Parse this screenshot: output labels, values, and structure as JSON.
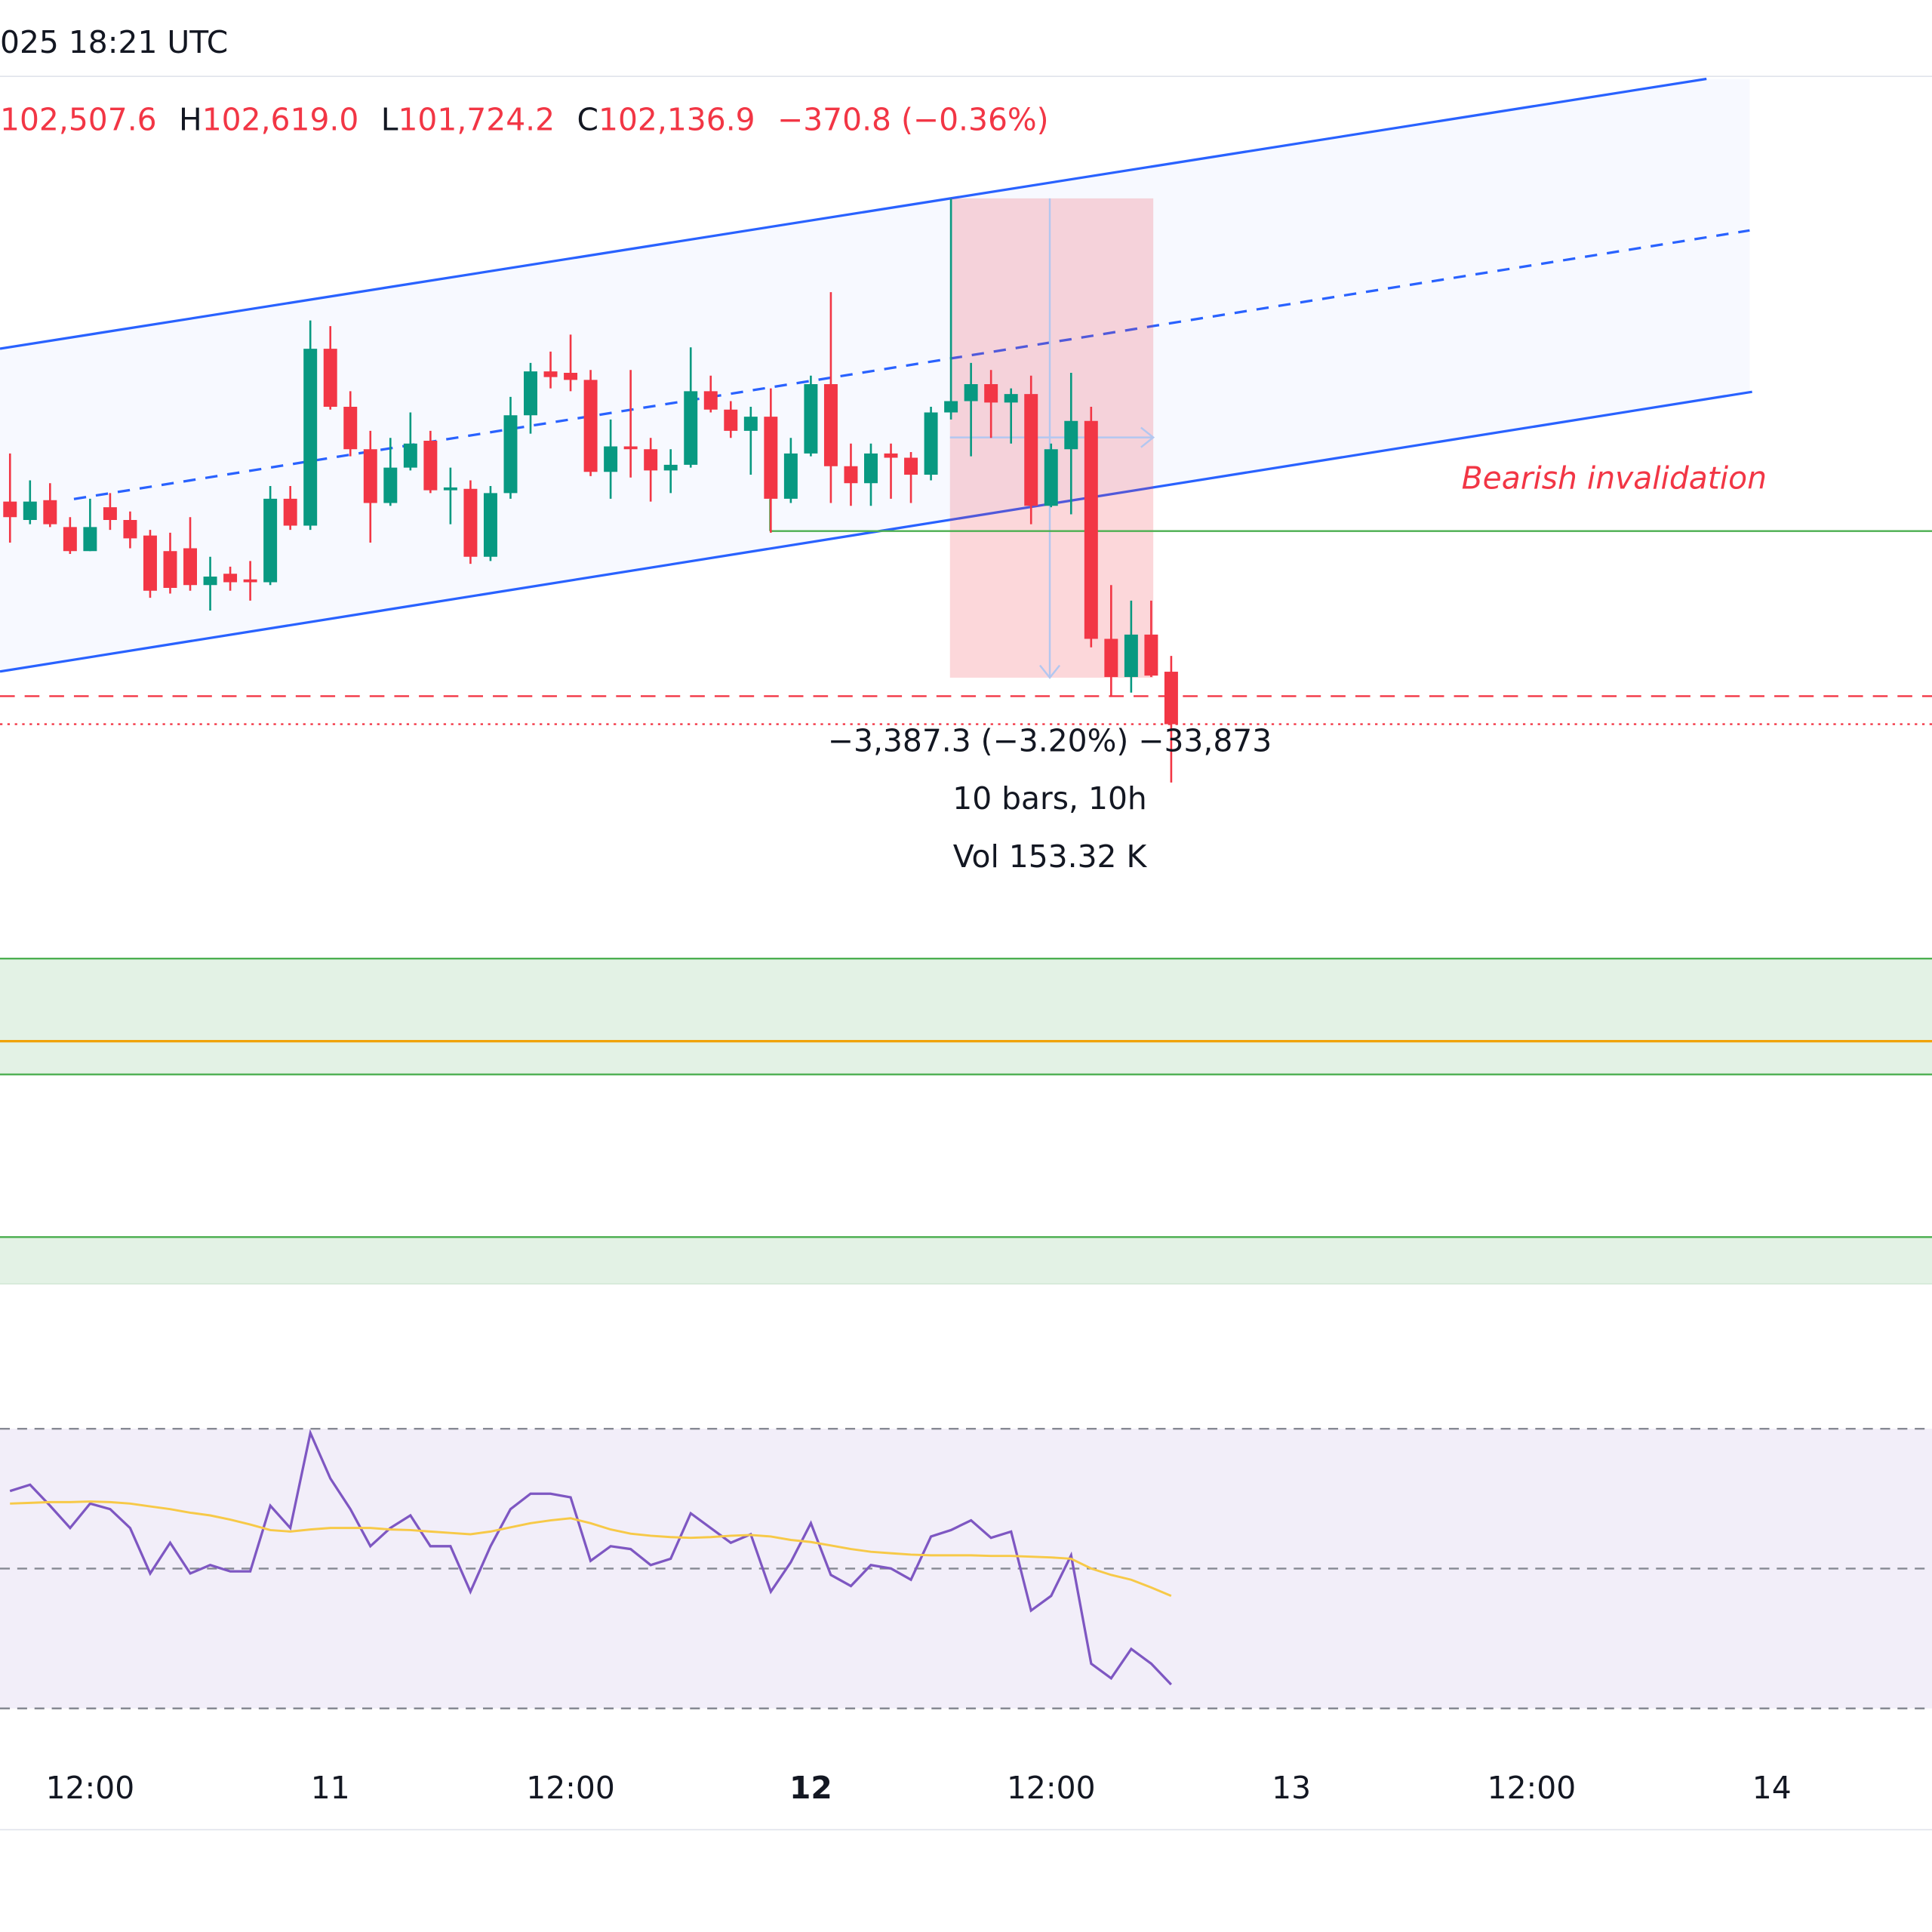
{
  "chart_data": [
    {
      "type": "candlestick",
      "subtitle": "025 18:21 UTC",
      "ohlc_legend": [
        {
          "value": "102,507.6"
        },
        {
          "label": "H",
          "value": "102,619.0"
        },
        {
          "label": "L",
          "value": "101,724.2"
        },
        {
          "label": "C",
          "value": "102,136.9"
        }
      ],
      "change": "−370.8 (−0.36%)",
      "annotations": [
        "−3,387.3 (−3.20%) −33,873",
        "10 bars, 10h",
        "Vol 153.32 K",
        "Bearish invalidation"
      ],
      "open": [
        103710,
        103580,
        103720,
        103530,
        103360,
        103670,
        103580,
        103470,
        103360,
        103380,
        103120,
        103200,
        103160,
        103140,
        103730,
        103540,
        104790,
        104380,
        104080,
        103700,
        103950,
        104140,
        103790,
        103800,
        103320,
        103770,
        104320,
        104630,
        104620,
        104570,
        103920,
        104100,
        104080,
        103930,
        103970,
        104490,
        104360,
        104210,
        104310,
        103730,
        104050,
        104540,
        103960,
        103840,
        104050,
        104020,
        103900,
        104340,
        104420,
        104540,
        104410,
        104470,
        103680,
        104080,
        104280,
        102740,
        102470,
        102770,
        102507.6
      ],
      "high": [
        104050,
        103860,
        103840,
        103600,
        103730,
        103770,
        103640,
        103510,
        103490,
        103600,
        103320,
        103250,
        103290,
        103820,
        103820,
        104990,
        104950,
        104490,
        104210,
        104160,
        104340,
        104210,
        103950,
        103860,
        103820,
        104450,
        104690,
        104770,
        104890,
        104640,
        104290,
        104640,
        104160,
        104080,
        104800,
        104600,
        104420,
        104380,
        104510,
        104160,
        104600,
        105190,
        104120,
        104120,
        104120,
        104060,
        104380,
        105850,
        104690,
        104640,
        104510,
        104600,
        104120,
        104620,
        104380,
        103120,
        103010,
        103010,
        102619.0
      ],
      "low": [
        103420,
        103550,
        103530,
        103340,
        103360,
        103510,
        103380,
        103030,
        103060,
        103080,
        102940,
        103080,
        103010,
        103120,
        103510,
        103510,
        104360,
        104030,
        103420,
        103680,
        103930,
        103770,
        103550,
        103270,
        103290,
        103730,
        104190,
        104510,
        104490,
        103890,
        103730,
        103880,
        103710,
        103770,
        103950,
        104340,
        104160,
        103900,
        103490,
        103700,
        104030,
        103700,
        103680,
        103680,
        103730,
        103700,
        103860,
        104290,
        104030,
        104160,
        104120,
        103550,
        103670,
        103620,
        102680,
        102330,
        102360,
        102470,
        101724.2
      ],
      "close": [
        103600,
        103710,
        103550,
        103360,
        103530,
        103580,
        103450,
        103080,
        103100,
        103120,
        103180,
        103140,
        103140,
        103730,
        103540,
        104790,
        104380,
        104080,
        103700,
        103950,
        104120,
        103790,
        103810,
        103320,
        103770,
        104320,
        104630,
        104590,
        104570,
        103920,
        104100,
        104080,
        103930,
        103970,
        104490,
        104360,
        104210,
        104310,
        103730,
        104050,
        104540,
        103960,
        103840,
        104050,
        104020,
        103900,
        104340,
        104420,
        104540,
        104410,
        104470,
        103680,
        104080,
        104280,
        102740,
        102470,
        102770,
        102480,
        102136.9
      ],
      "up_color": "#089981",
      "down_color": "#f23645",
      "xlim": [
        -0.5,
        96
      ],
      "ylim": [
        97676,
        106715
      ]
    },
    {
      "type": "line",
      "series": [
        {
          "color": "#7e57c2",
          "values": [
            61.1,
            62.0,
            59.0,
            55.8,
            59.3,
            58.5,
            55.8,
            49.3,
            53.7,
            49.3,
            50.5,
            49.6,
            49.6,
            59.0,
            55.8,
            69.4,
            62.9,
            58.5,
            53.2,
            55.8,
            57.6,
            53.2,
            53.2,
            46.7,
            53.2,
            58.5,
            60.7,
            60.7,
            60.2,
            51.1,
            53.2,
            52.8,
            50.5,
            51.4,
            57.9,
            55.8,
            53.7,
            54.9,
            46.7,
            50.9,
            56.5,
            49.1,
            47.5,
            50.5,
            50.0,
            48.4,
            54.6,
            55.5,
            56.9,
            54.4,
            55.3,
            44.0,
            46.1,
            51.9,
            36.4,
            34.3,
            38.5,
            36.4,
            33.4
          ]
        },
        {
          "color": "#f7c948",
          "values": [
            59.3,
            59.4,
            59.5,
            59.5,
            59.6,
            59.5,
            59.3,
            58.9,
            58.5,
            58.0,
            57.6,
            57.0,
            56.3,
            55.5,
            55.3,
            55.6,
            55.8,
            55.8,
            55.8,
            55.6,
            55.5,
            55.3,
            55.1,
            54.9,
            55.3,
            55.9,
            56.5,
            56.9,
            57.2,
            56.5,
            55.6,
            55.0,
            54.7,
            54.5,
            54.4,
            54.5,
            54.7,
            54.8,
            54.6,
            54.1,
            53.8,
            53.3,
            52.8,
            52.4,
            52.2,
            52.0,
            51.9,
            51.9,
            51.9,
            51.8,
            51.8,
            51.7,
            51.6,
            51.4,
            50.0,
            49.1,
            48.4,
            47.3,
            46.1
          ]
        }
      ],
      "levels": [
        70,
        50,
        30
      ],
      "band_color": "#7e57c2",
      "xlim": [
        -0.5,
        96
      ],
      "ylim": [
        24.1,
        80.5
      ],
      "xticks": [
        {
          "value": 4,
          "label": "12:00"
        },
        {
          "value": 16,
          "label": "11"
        },
        {
          "value": 28,
          "label": "12:00"
        },
        {
          "value": 40,
          "label": "12",
          "bold": true
        },
        {
          "value": 52,
          "label": "12:00"
        },
        {
          "value": 64,
          "label": "13"
        },
        {
          "value": 76,
          "label": "12:00"
        },
        {
          "value": 88,
          "label": "14"
        }
      ]
    }
  ]
}
